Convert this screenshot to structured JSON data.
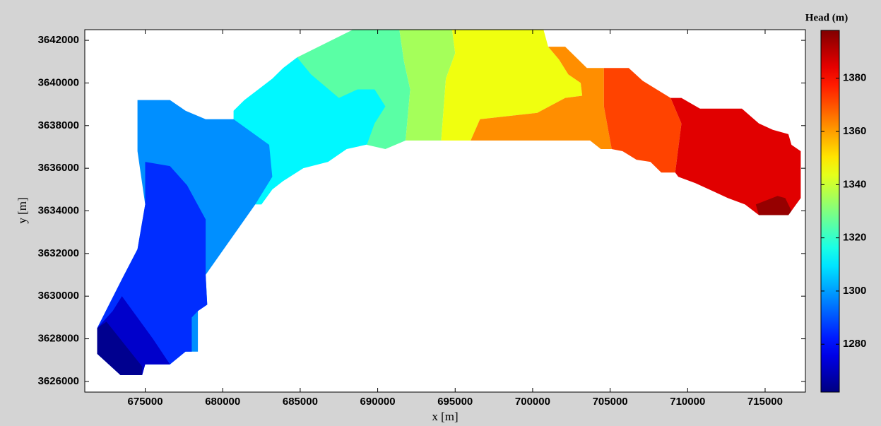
{
  "chart_data": {
    "type": "contour",
    "x_label": "x [m]",
    "y_label": "y [m]",
    "xlim": [
      671100,
      717600
    ],
    "ylim": [
      3625500,
      3642500
    ],
    "xticks": [
      675000,
      680000,
      685000,
      690000,
      695000,
      700000,
      705000,
      710000,
      715000
    ],
    "yticks": [
      3626000,
      3628000,
      3630000,
      3632000,
      3634000,
      3636000,
      3638000,
      3640000,
      3642000
    ],
    "colorbar": {
      "title": "Head (m)",
      "colormap": "jet",
      "clim": [
        1262,
        1398
      ],
      "ticks": [
        1280,
        1300,
        1320,
        1340,
        1360,
        1380
      ]
    },
    "regions": [
      {
        "value": 1312,
        "x": [
          680700,
          680700,
          681400,
          682300,
          683200,
          683900,
          684800,
          686600,
          688000,
          688400,
          691400,
          690500,
          688000,
          686800,
          685200,
          683900,
          683200,
          682500,
          682100
        ],
        "y": [
          3638300,
          3638700,
          3639200,
          3639700,
          3640200,
          3640700,
          3641200,
          3641600,
          3642200,
          3642500,
          3642500,
          3637300,
          3636900,
          3636300,
          3636000,
          3635400,
          3635000,
          3634300,
          3634300
        ]
      },
      {
        "value": 1325,
        "x": [
          684800,
          688400,
          691400,
          691700,
          692100,
          691800,
          690500,
          689300,
          689800,
          690500,
          689800,
          688700,
          687500,
          685700
        ],
        "y": [
          3641200,
          3642500,
          3642500,
          3641000,
          3639700,
          3637300,
          3636900,
          3637100,
          3638100,
          3638900,
          3639700,
          3639700,
          3639300,
          3640400
        ]
      },
      {
        "value": 1335,
        "x": [
          691400,
          694800,
          695000,
          694400,
          694100,
          691800,
          692100,
          691700
        ],
        "y": [
          3642500,
          3642500,
          3641400,
          3640200,
          3637300,
          3637300,
          3639700,
          3641000
        ]
      },
      {
        "value": 1345,
        "x": [
          694800,
          700700,
          701000,
          701700,
          702300,
          703100,
          703200,
          702100,
          700300,
          696600,
          696000,
          694100,
          694400,
          695000
        ],
        "y": [
          3642500,
          3642500,
          3641700,
          3641100,
          3640400,
          3640000,
          3639400,
          3639300,
          3638600,
          3638300,
          3637300,
          3637300,
          3640200,
          3641400
        ]
      },
      {
        "value": 1362,
        "x": [
          701000,
          702100,
          703500,
          704600,
          704600,
          705100,
          704400,
          703700,
          696000,
          696600,
          700300,
          702100,
          703200,
          703100,
          702300,
          701700
        ],
        "y": [
          3641700,
          3641700,
          3640700,
          3640700,
          3638900,
          3636900,
          3636900,
          3637300,
          3637300,
          3638300,
          3638600,
          3639300,
          3639400,
          3640000,
          3640400,
          3641100
        ]
      },
      {
        "value": 1372,
        "x": [
          704600,
          706200,
          707100,
          708000,
          708900,
          709600,
          709200,
          708300,
          707600,
          706700,
          705800,
          705100,
          704600
        ],
        "y": [
          3640700,
          3640700,
          3640100,
          3639700,
          3639300,
          3638100,
          3635800,
          3635800,
          3636300,
          3636400,
          3636800,
          3636900,
          3638900
        ]
      },
      {
        "value": 1385,
        "x": [
          708900,
          709600,
          710800,
          713500,
          714600,
          715500,
          716500,
          716700,
          717300,
          717300,
          716500,
          714600,
          713700,
          712600,
          711700,
          710500,
          709400,
          709200,
          709600
        ],
        "y": [
          3639300,
          3639300,
          3638800,
          3638800,
          3638100,
          3637800,
          3637600,
          3637100,
          3636800,
          3634600,
          3633800,
          3633800,
          3634300,
          3634600,
          3634900,
          3635300,
          3635600,
          3635800,
          3638100
        ]
      },
      {
        "value": 1395,
        "x": [
          714400,
          715800,
          716300,
          716700,
          716500,
          714600
        ],
        "y": [
          3634300,
          3634700,
          3634600,
          3634000,
          3633800,
          3633800
        ]
      },
      {
        "value": 1298,
        "x": [
          674500,
          676600,
          677600,
          678900,
          680700,
          683000,
          683200,
          682100,
          678900,
          679000,
          678400,
          678400,
          677600,
          676600,
          675000,
          674800,
          673400,
          671900,
          671900,
          673500,
          674500,
          675000,
          674500
        ],
        "y": [
          3639200,
          3639200,
          3638700,
          3638300,
          3638300,
          3637100,
          3635600,
          3634300,
          3631000,
          3629600,
          3629300,
          3627400,
          3627400,
          3626800,
          3626800,
          3626300,
          3626300,
          3627300,
          3628500,
          3630800,
          3632200,
          3634300,
          3636800
        ]
      },
      {
        "value": 1285,
        "x": [
          675000,
          676600,
          677700,
          678900,
          678900,
          679000,
          678400,
          678000,
          678000,
          677600,
          676600,
          675000,
          674800,
          673400,
          671900,
          671900,
          673500,
          674500,
          675000
        ],
        "y": [
          3636300,
          3636100,
          3635200,
          3633600,
          3631000,
          3629600,
          3629300,
          3629000,
          3627400,
          3627400,
          3626800,
          3626800,
          3626300,
          3626300,
          3627300,
          3628500,
          3630800,
          3632200,
          3634300
        ]
      },
      {
        "value": 1272,
        "x": [
          671900,
          672900,
          673500,
          675500,
          676600,
          675000,
          674800,
          673400,
          671900
        ],
        "y": [
          3628500,
          3629300,
          3630000,
          3628000,
          3626800,
          3626800,
          3626300,
          3626300,
          3627300
        ]
      },
      {
        "value": 1264,
        "x": [
          671900,
          672500,
          674800,
          674800,
          673400,
          671900
        ],
        "y": [
          3628500,
          3628800,
          3626700,
          3626300,
          3626300,
          3627300
        ]
      }
    ]
  }
}
